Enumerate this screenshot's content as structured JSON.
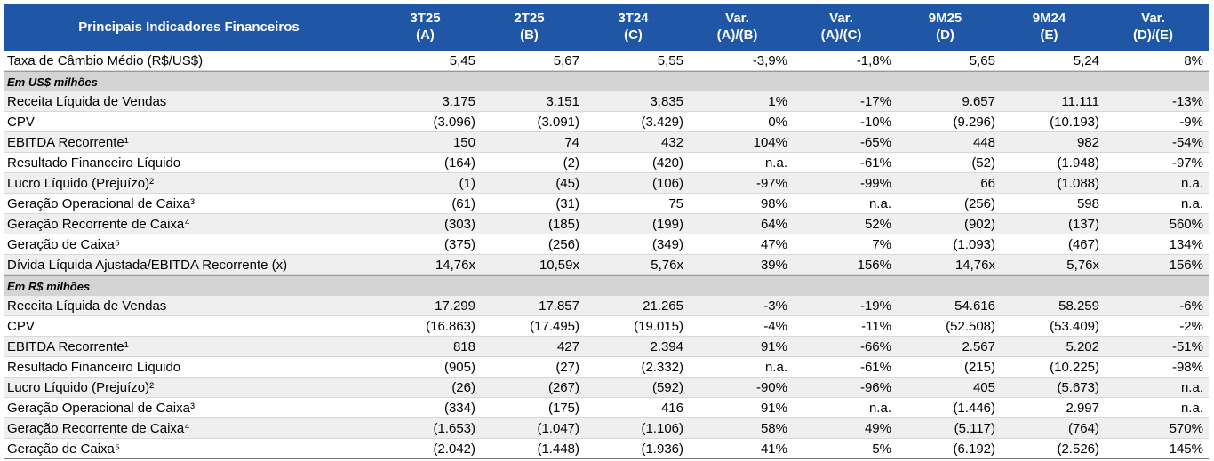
{
  "header": {
    "title": "Principais Indicadores Financeiros",
    "columns": [
      [
        "3T25",
        "(A)"
      ],
      [
        "2T25",
        "(B)"
      ],
      [
        "3T24",
        "(C)"
      ],
      [
        "Var.",
        "(A)/(B)"
      ],
      [
        "Var.",
        "(A)/(C)"
      ],
      [
        "9M25",
        "(D)"
      ],
      [
        "9M24",
        "(E)"
      ],
      [
        "Var.",
        "(D)/(E)"
      ]
    ]
  },
  "top_row": {
    "label": "Taxa de Câmbio Médio (R$/US$)",
    "values": [
      "5,45",
      "5,67",
      "5,55",
      "-3,9%",
      "-1,8%",
      "5,65",
      "5,24",
      "8%"
    ]
  },
  "sections": [
    {
      "title": "Em US$ milhões",
      "rows": [
        {
          "label": "Receita Líquida de Vendas",
          "values": [
            "3.175",
            "3.151",
            "3.835",
            "1%",
            "-17%",
            "9.657",
            "11.111",
            "-13%"
          ]
        },
        {
          "label": "CPV",
          "values": [
            "(3.096)",
            "(3.091)",
            "(3.429)",
            "0%",
            "-10%",
            "(9.296)",
            "(10.193)",
            "-9%"
          ]
        },
        {
          "label": "EBITDA Recorrente¹",
          "values": [
            "150",
            "74",
            "432",
            "104%",
            "-65%",
            "448",
            "982",
            "-54%"
          ]
        },
        {
          "label": "Resultado Financeiro Líquido",
          "values": [
            "(164)",
            "(2)",
            "(420)",
            "n.a.",
            "-61%",
            "(52)",
            "(1.948)",
            "-97%"
          ]
        },
        {
          "label": "Lucro Líquido (Prejuízo)²",
          "values": [
            "(1)",
            "(45)",
            "(106)",
            "-97%",
            "-99%",
            "66",
            "(1.088)",
            "n.a."
          ]
        },
        {
          "label": "Geração Operacional de Caixa³",
          "values": [
            "(61)",
            "(31)",
            "75",
            "98%",
            "n.a.",
            "(256)",
            "598",
            "n.a."
          ]
        },
        {
          "label": "Geração Recorrente de Caixa⁴",
          "values": [
            "(303)",
            "(185)",
            "(199)",
            "64%",
            "52%",
            "(902)",
            "(137)",
            "560%"
          ]
        },
        {
          "label": "Geração de Caixa⁵",
          "values": [
            "(375)",
            "(256)",
            "(349)",
            "47%",
            "7%",
            "(1.093)",
            "(467)",
            "134%"
          ]
        },
        {
          "label": "Dívida Líquida Ajustada/EBITDA Recorrente (x)",
          "values": [
            "14,76x",
            "10,59x",
            "5,76x",
            "39%",
            "156%",
            "14,76x",
            "5,76x",
            "156%"
          ]
        }
      ]
    },
    {
      "title": "Em R$ milhões",
      "rows": [
        {
          "label": "Receita Líquida de Vendas",
          "values": [
            "17.299",
            "17.857",
            "21.265",
            "-3%",
            "-19%",
            "54.616",
            "58.259",
            "-6%"
          ]
        },
        {
          "label": "CPV",
          "values": [
            "(16.863)",
            "(17.495)",
            "(19.015)",
            "-4%",
            "-11%",
            "(52.508)",
            "(53.409)",
            "-2%"
          ]
        },
        {
          "label": "EBITDA Recorrente¹",
          "values": [
            "818",
            "427",
            "2.394",
            "91%",
            "-66%",
            "2.567",
            "5.202",
            "-51%"
          ]
        },
        {
          "label": "Resultado Financeiro Líquido",
          "values": [
            "(905)",
            "(27)",
            "(2.332)",
            "n.a.",
            "-61%",
            "(215)",
            "(10.225)",
            "-98%"
          ]
        },
        {
          "label": "Lucro Líquido (Prejuízo)²",
          "values": [
            "(26)",
            "(267)",
            "(592)",
            "-90%",
            "-96%",
            "405",
            "(5.673)",
            "n.a."
          ]
        },
        {
          "label": "Geração Operacional de Caixa³",
          "values": [
            "(334)",
            "(175)",
            "416",
            "91%",
            "n.a.",
            "(1.446)",
            "2.997",
            "n.a."
          ]
        },
        {
          "label": "Geração Recorrente de Caixa⁴",
          "values": [
            "(1.653)",
            "(1.047)",
            "(1.106)",
            "58%",
            "49%",
            "(5.117)",
            "(764)",
            "570%"
          ]
        },
        {
          "label": "Geração de Caixa⁵",
          "values": [
            "(2.042)",
            "(1.448)",
            "(1.936)",
            "41%",
            "5%",
            "(6.192)",
            "(2.526)",
            "145%"
          ]
        }
      ]
    }
  ]
}
